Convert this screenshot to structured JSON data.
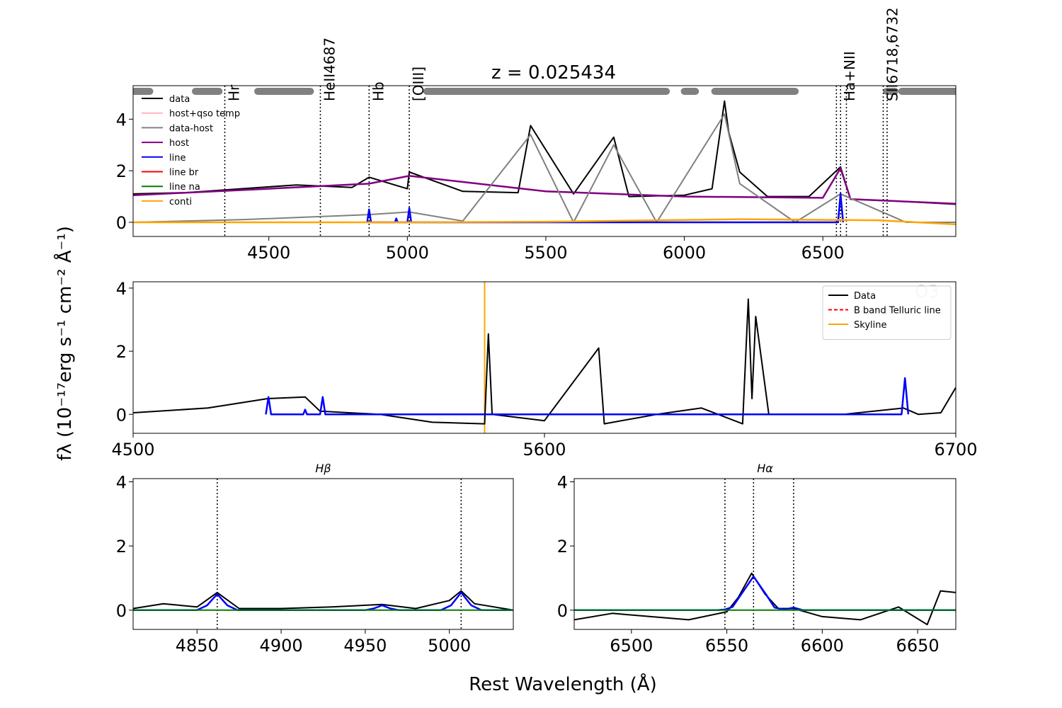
{
  "figure": {
    "title": "z = 0.025434",
    "xlabel": "Rest Wavelength (Å)",
    "ylabel": "fλ (10⁻¹⁷erg s⁻¹ cm⁻² Å⁻¹)"
  },
  "chart_data": [
    {
      "type": "line",
      "panel": "full-spectrum",
      "xlim": [
        4010,
        6980
      ],
      "ylim": [
        -0.55,
        5.3
      ],
      "xticks": [
        4500,
        5000,
        5500,
        6000,
        6500
      ],
      "yticks": [
        0,
        2,
        4
      ],
      "legend": {
        "placement": "top-left",
        "entries": [
          {
            "label": "data",
            "color": "#000000"
          },
          {
            "label": "host+qso temp",
            "color": "#ffb6c1"
          },
          {
            "label": "data-host",
            "color": "#808080"
          },
          {
            "label": "host",
            "color": "#800080"
          },
          {
            "label": "line",
            "color": "#0000ff"
          },
          {
            "label": "line br",
            "color": "#ff0000"
          },
          {
            "label": "line na",
            "color": "#008000"
          },
          {
            "label": "conti",
            "color": "#ffa500"
          }
        ]
      },
      "line_markers": [
        {
          "x": 4341,
          "label": "Hr"
        },
        {
          "x": 4686,
          "label": "HeII4687"
        },
        {
          "x": 4862,
          "label": "Hb"
        },
        {
          "x": 5007,
          "label": "[OIII]"
        },
        {
          "x": 6549,
          "label": ""
        },
        {
          "x": 6564,
          "label": "Ha+NII"
        },
        {
          "x": 6585,
          "label": ""
        },
        {
          "x": 6718,
          "label": "SII6718,6732"
        },
        {
          "x": 6732,
          "label": ""
        }
      ],
      "masked_ranges": [
        [
          4010,
          4070
        ],
        [
          4235,
          4320
        ],
        [
          4460,
          4650
        ],
        [
          5070,
          5935
        ],
        [
          6000,
          6040
        ],
        [
          6110,
          6400
        ],
        [
          6730,
          6760
        ],
        [
          6785,
          6980
        ]
      ],
      "series": [
        {
          "name": "data",
          "color": "#000000",
          "x": [
            4010,
            4200,
            4400,
            4600,
            4800,
            4862,
            5000,
            5007,
            5200,
            5400,
            5445,
            5600,
            5745,
            5800,
            6000,
            6100,
            6145,
            6160,
            6200,
            6300,
            6450,
            6564,
            6600,
            6800,
            6980
          ],
          "y": [
            1.1,
            1.15,
            1.3,
            1.45,
            1.35,
            1.75,
            1.3,
            1.95,
            1.2,
            1.15,
            3.75,
            1.1,
            3.3,
            1.0,
            1.05,
            1.3,
            4.7,
            3.5,
            1.95,
            1.0,
            1.0,
            2.15,
            0.9,
            0.8,
            0.7
          ]
        },
        {
          "name": "host",
          "color": "#800080",
          "x": [
            4010,
            4500,
            4862,
            5007,
            5500,
            6000,
            6500,
            6564,
            6600,
            6980
          ],
          "y": [
            1.05,
            1.3,
            1.5,
            1.8,
            1.2,
            1.0,
            0.95,
            2.1,
            0.9,
            0.72
          ]
        },
        {
          "name": "data-host",
          "color": "#808080",
          "x": [
            4010,
            4400,
            4862,
            5007,
            5200,
            5445,
            5600,
            5745,
            5900,
            6145,
            6200,
            6400,
            6564,
            6800,
            6980
          ],
          "y": [
            0.0,
            0.1,
            0.3,
            0.4,
            0.05,
            3.4,
            0.0,
            3.0,
            0.0,
            4.2,
            1.5,
            0.0,
            1.1,
            0.0,
            0.0
          ]
        },
        {
          "name": "line",
          "color": "#0000ff",
          "x": [
            4855,
            4862,
            4869,
            4955,
            4960,
            4965,
            5000,
            5007,
            5014,
            6555,
            6564,
            6573
          ],
          "y": [
            0,
            0.5,
            0,
            0,
            0.15,
            0,
            0,
            0.55,
            0,
            0,
            1.1,
            0
          ]
        },
        {
          "name": "conti",
          "color": "#ffa500",
          "x": [
            4010,
            5000,
            5500,
            6200,
            6700,
            6980
          ],
          "y": [
            0.0,
            0.0,
            0.02,
            0.12,
            0.08,
            -0.08
          ]
        }
      ]
    },
    {
      "type": "line",
      "panel": "residual-spectrum",
      "xlim": [
        4500,
        6700
      ],
      "ylim": [
        -0.6,
        4.2
      ],
      "xticks": [
        4500,
        5600,
        6700
      ],
      "yticks": [
        0,
        2,
        4
      ],
      "annotation": "O3",
      "legend": {
        "placement": "top-right",
        "entries": [
          {
            "label": "Data",
            "color": "#000000",
            "dash": "solid"
          },
          {
            "label": "B band Telluric line",
            "color": "#ff0000",
            "dash": "dashed"
          },
          {
            "label": "Skyline",
            "color": "#ffa500",
            "dash": "solid"
          }
        ]
      },
      "vlines": [
        {
          "x": 5440,
          "color": "#ffa500",
          "label": "Skyline"
        }
      ],
      "series": [
        {
          "name": "Data",
          "color": "#000000",
          "x": [
            4500,
            4700,
            4860,
            4960,
            5000,
            5160,
            5300,
            5440,
            5450,
            5460,
            5600,
            5745,
            5760,
            5900,
            6020,
            6130,
            6145,
            6155,
            6165,
            6200,
            6400,
            6560,
            6600,
            6660,
            6700
          ],
          "y": [
            0.05,
            0.2,
            0.5,
            0.55,
            0.1,
            0.0,
            -0.25,
            -0.3,
            2.55,
            0.0,
            -0.2,
            2.1,
            -0.3,
            0.0,
            0.2,
            -0.3,
            3.65,
            0.5,
            3.1,
            0.0,
            0.0,
            0.2,
            0.0,
            0.05,
            0.85
          ]
        },
        {
          "name": "line",
          "color": "#0000ff",
          "x": [
            4855,
            4862,
            4869,
            4955,
            4960,
            4965,
            5000,
            5007,
            5014,
            6555,
            6564,
            6573
          ],
          "y": [
            0,
            0.55,
            0,
            0,
            0.15,
            0,
            0,
            0.55,
            0,
            0,
            1.15,
            0
          ]
        }
      ]
    },
    {
      "type": "line",
      "panel": "hbeta-zoom",
      "title": "Hβ",
      "xlim": [
        4812,
        5038
      ],
      "ylim": [
        -0.6,
        4.1
      ],
      "xticks": [
        4850,
        4900,
        4950,
        5000
      ],
      "yticks": [
        0,
        2,
        4
      ],
      "vlines": [
        4862,
        5007
      ],
      "series": [
        {
          "name": "data",
          "color": "#000000",
          "x": [
            4812,
            4830,
            4850,
            4862,
            4875,
            4900,
            4930,
            4960,
            4980,
            5000,
            5007,
            5015,
            5038
          ],
          "y": [
            0.05,
            0.2,
            0.1,
            0.55,
            0.05,
            0.05,
            0.1,
            0.18,
            0.05,
            0.3,
            0.6,
            0.2,
            0.0
          ]
        },
        {
          "name": "line",
          "color": "#0000ff",
          "x": [
            4812,
            4850,
            4856,
            4862,
            4868,
            4874,
            4950,
            4955,
            4960,
            4965,
            4970,
            4995,
            5001,
            5007,
            5013,
            5019,
            5038
          ],
          "y": [
            0,
            0,
            0.15,
            0.5,
            0.15,
            0,
            0,
            0.05,
            0.15,
            0.05,
            0,
            0,
            0.15,
            0.55,
            0.15,
            0,
            0
          ]
        },
        {
          "name": "line na",
          "color": "#008000",
          "x": [
            4812,
            5038
          ],
          "y": [
            0,
            0
          ]
        }
      ]
    },
    {
      "type": "line",
      "panel": "halpha-zoom",
      "title": "Hα",
      "xlim": [
        6470,
        6670
      ],
      "ylim": [
        -0.6,
        4.1
      ],
      "xticks": [
        6500,
        6550,
        6600,
        6650
      ],
      "yticks": [
        0,
        2,
        4
      ],
      "vlines": [
        6549,
        6564,
        6585
      ],
      "series": [
        {
          "name": "data",
          "color": "#000000",
          "x": [
            6470,
            6490,
            6510,
            6530,
            6550,
            6556,
            6563,
            6570,
            6577,
            6585,
            6600,
            6620,
            6640,
            6655,
            6662,
            6670
          ],
          "y": [
            -0.3,
            -0.1,
            -0.2,
            -0.3,
            -0.05,
            0.4,
            1.15,
            0.5,
            0.05,
            0.05,
            -0.2,
            -0.3,
            0.1,
            -0.45,
            0.6,
            0.55
          ]
        },
        {
          "name": "line",
          "color": "#0000ff",
          "x": [
            6470,
            6545,
            6549,
            6553,
            6557,
            6564,
            6571,
            6575,
            6580,
            6585,
            6590,
            6670
          ],
          "y": [
            0,
            0,
            0.02,
            0.1,
            0.45,
            1.05,
            0.45,
            0.08,
            0.02,
            0.08,
            0,
            0
          ]
        },
        {
          "name": "line na",
          "color": "#008000",
          "x": [
            6470,
            6670
          ],
          "y": [
            0,
            0
          ]
        }
      ]
    }
  ]
}
